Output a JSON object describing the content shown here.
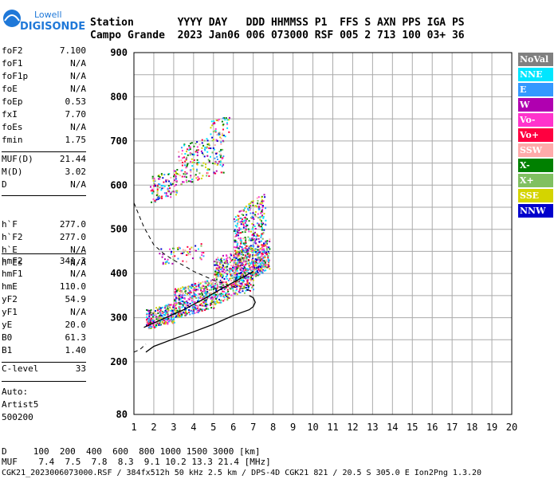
{
  "logo": {
    "line1": "Lowell",
    "line2": "DIGISONDE"
  },
  "header": {
    "line1": "Station       YYYY DAY   DDD HHMMSS P1  FFS S AXN PPS IGA PS",
    "line2": "Campo Grande  2023 Jan06 006 073000 RSF 005 2 713 100 03+ 36"
  },
  "params_group1": [
    {
      "name": "foF2",
      "value": "7.100"
    },
    {
      "name": "foF1",
      "value": "N/A"
    },
    {
      "name": "foF1p",
      "value": "N/A"
    },
    {
      "name": "foE",
      "value": "N/A"
    },
    {
      "name": "foEp",
      "value": "0.53"
    },
    {
      "name": "fxI",
      "value": "7.70"
    },
    {
      "name": "foEs",
      "value": "N/A"
    },
    {
      "name": "fmin",
      "value": "1.75"
    }
  ],
  "params_group2": [
    {
      "name": "MUF(D)",
      "value": "21.44"
    },
    {
      "name": "M(D)",
      "value": "3.02"
    },
    {
      "name": "D",
      "value": "N/A"
    }
  ],
  "params_group3": [
    {
      "name": "h`F",
      "value": "277.0"
    },
    {
      "name": "h`F2",
      "value": "277.0"
    },
    {
      "name": "h`E",
      "value": "N/A"
    },
    {
      "name": "h`Es",
      "value": "N/A"
    }
  ],
  "params_group4": [
    {
      "name": "hmF2",
      "value": "341.3"
    },
    {
      "name": "hmF1",
      "value": "N/A"
    },
    {
      "name": "hmE",
      "value": "110.0"
    },
    {
      "name": "yF2",
      "value": "54.9"
    },
    {
      "name": "yF1",
      "value": "N/A"
    },
    {
      "name": "yE",
      "value": "20.0"
    },
    {
      "name": "B0",
      "value": "61.3"
    },
    {
      "name": "B1",
      "value": "1.40"
    }
  ],
  "params_group5": [
    {
      "name": "C-level",
      "value": "33"
    }
  ],
  "notes": [
    "Auto:",
    "Artist5",
    "500200"
  ],
  "legend": [
    {
      "label": "NoVal",
      "color": "#808080"
    },
    {
      "label": "NNE",
      "color": "#00e6ff"
    },
    {
      "label": "E",
      "color": "#3399ff"
    },
    {
      "label": "W",
      "color": "#b000b0"
    },
    {
      "label": "Vo-",
      "color": "#ff33cc"
    },
    {
      "label": "Vo+",
      "color": "#ff0040"
    },
    {
      "label": "SSW",
      "color": "#ffaaaa"
    },
    {
      "label": "X-",
      "color": "#008000"
    },
    {
      "label": "X+",
      "color": "#80c060"
    },
    {
      "label": "SSE",
      "color": "#d4d400"
    },
    {
      "label": "NNW",
      "color": "#0000cc"
    }
  ],
  "bottom": {
    "d_row": "D     100  200  400  600  800 1000 1500 3000 [km]",
    "muf_row": "MUF    7.4  7.5  7.8  8.3  9.1 10.2 13.3 21.4 [MHz]",
    "footer": "CGK21_2023006073000.RSF / 384fx512h 50 kHz 2.5 km / DPS-4D CGK21 821 / 20.5 S 305.0 E Ion2Png 1.3.20"
  },
  "chart_data": {
    "type": "scatter",
    "x_range": [
      1,
      20
    ],
    "y_range": [
      80,
      900
    ],
    "x_ticks": [
      "1",
      "2",
      "3",
      "4",
      "5",
      "6",
      "7",
      "8",
      "9",
      "10",
      "11",
      "12",
      "13",
      "14",
      "15",
      "16",
      "17",
      "18",
      "19",
      "20"
    ],
    "y_ticks": [
      "80",
      "200",
      "300",
      "400",
      "500",
      "600",
      "700",
      "800",
      "900"
    ],
    "grid": true,
    "profile_solid_top": [
      [
        1.5,
        278
      ],
      [
        2,
        288
      ],
      [
        2.5,
        298
      ],
      [
        3,
        308
      ],
      [
        3.5,
        318
      ],
      [
        4,
        330
      ],
      [
        4.5,
        342
      ],
      [
        5,
        355
      ],
      [
        5.5,
        368
      ],
      [
        6,
        380
      ],
      [
        6.5,
        392
      ],
      [
        7,
        405
      ]
    ],
    "profile_solid_bottom": [
      [
        1.6,
        222
      ],
      [
        2,
        235
      ],
      [
        3,
        252
      ],
      [
        4,
        268
      ],
      [
        5,
        285
      ],
      [
        6,
        305
      ],
      [
        6.8,
        318
      ],
      [
        7,
        325
      ],
      [
        7.1,
        335
      ],
      [
        7,
        345
      ],
      [
        6.8,
        350
      ]
    ],
    "profile_dashed": [
      [
        1,
        560
      ],
      [
        1.5,
        505
      ],
      [
        2,
        465
      ],
      [
        2.5,
        445
      ],
      [
        3,
        430
      ],
      [
        3.5,
        418
      ],
      [
        4,
        405
      ],
      [
        5,
        385
      ],
      [
        6,
        370
      ],
      [
        7,
        360
      ]
    ],
    "profile_dashed_low": [
      [
        1,
        222
      ],
      [
        1.3,
        228
      ],
      [
        1.6,
        240
      ]
    ],
    "clusters": [
      {
        "x": [
          1.6,
          3.0
        ],
        "y": [
          275,
          335
        ],
        "n": 260
      },
      {
        "x": [
          3.0,
          5.0
        ],
        "y": [
          300,
          390
        ],
        "n": 420
      },
      {
        "x": [
          5.0,
          7.0
        ],
        "y": [
          330,
          470
        ],
        "n": 520
      },
      {
        "x": [
          6.0,
          7.6
        ],
        "y": [
          360,
          590
        ],
        "n": 480
      },
      {
        "x": [
          7.0,
          7.8
        ],
        "y": [
          390,
          480
        ],
        "n": 160
      },
      {
        "x": [
          1.8,
          3.2
        ],
        "y": [
          560,
          640
        ],
        "n": 120
      },
      {
        "x": [
          3.2,
          5.5
        ],
        "y": [
          600,
          720
        ],
        "n": 200
      },
      {
        "x": [
          4.8,
          5.8
        ],
        "y": [
          700,
          760
        ],
        "n": 40
      },
      {
        "x": [
          2.2,
          4.5
        ],
        "y": [
          420,
          470
        ],
        "n": 60
      }
    ]
  }
}
